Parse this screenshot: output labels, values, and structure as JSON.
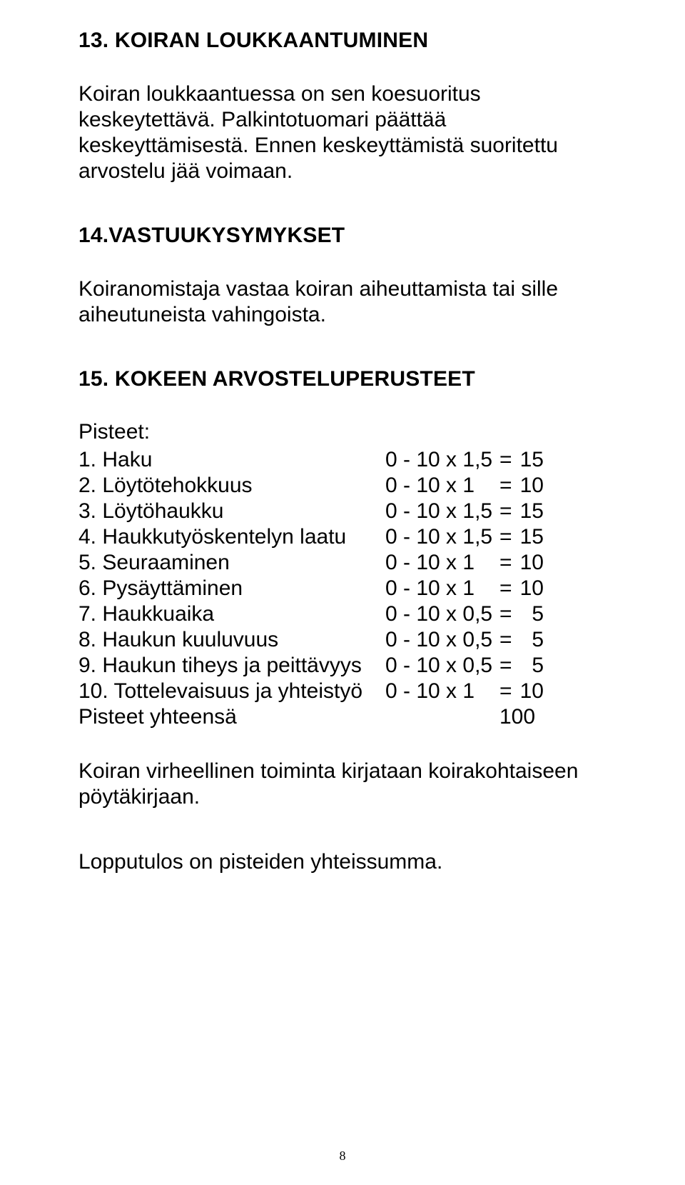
{
  "colors": {
    "background": "#ffffff",
    "text": "#000000"
  },
  "typography": {
    "family": "Arial, Helvetica, sans-serif",
    "body_size_pt": 22,
    "heading_weight": "bold"
  },
  "section13": {
    "heading": "13. KOIRAN LOUKKAANTUMINEN",
    "body": "Koiran loukkaantuessa on sen koesuoritus keskeytettävä. Palkintotuomari päättää keskeyttämisestä. Ennen keskeyttämistä suoritettu arvostelu jää voimaan."
  },
  "section14": {
    "heading": "14.VASTUUKYSYMYKSET",
    "body": "Koiranomistaja vastaa koiran aiheuttamista tai sille aiheutuneista vahingoista."
  },
  "section15": {
    "heading": "15. KOKEEN ARVOSTELUPERUSTEET",
    "label": "Pisteet:",
    "rows": [
      {
        "label": "1. Haku",
        "range": "0 - 10 x 1,5",
        "eq": "=",
        "val": "15"
      },
      {
        "label": "2. Löytötehokkuus",
        "range": "0 - 10 x 1",
        "eq": "=",
        "val": "10"
      },
      {
        "label": "3. Löytöhaukku",
        "range": "0 - 10 x 1,5",
        "eq": "=",
        "val": "15"
      },
      {
        "label": "4. Haukkutyöskentelyn laatu",
        "range": "0 - 10 x 1,5",
        "eq": "=",
        "val": "15"
      },
      {
        "label": "5. Seuraaminen",
        "range": "0 - 10 x 1",
        "eq": "=",
        "val": "10"
      },
      {
        "label": "6. Pysäyttäminen",
        "range": "0 - 10 x 1",
        "eq": "=",
        "val": "10"
      },
      {
        "label": "7. Haukkuaika",
        "range": "0 - 10 x 0,5",
        "eq": "=",
        "val": "5"
      },
      {
        "label": "8. Haukun kuuluvuus",
        "range": "0 - 10 x 0,5",
        "eq": "=",
        "val": "5"
      },
      {
        "label": "9. Haukun tiheys ja peittävyys",
        "range": "0 - 10 x 0,5",
        "eq": "=",
        "val": "5"
      },
      {
        "label": "10. Tottelevaisuus ja yhteistyö",
        "range": "0 - 10 x 1",
        "eq": "=",
        "val": "10"
      }
    ],
    "total_label": "Pisteet yhteensä",
    "total_value": "100",
    "note1": "Koiran virheellinen toiminta kirjataan koirakohtaiseen pöytäkirjaan.",
    "note2": "Lopputulos on pisteiden yhteissumma."
  },
  "page_number": "8"
}
